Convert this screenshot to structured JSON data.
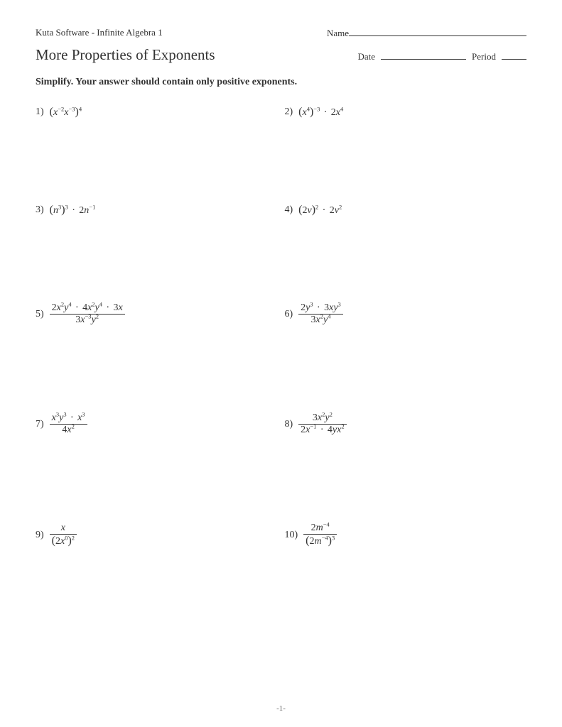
{
  "header": {
    "software": "Kuta Software - Infinite Algebra 1",
    "name_label": "Name"
  },
  "title": "More Properties of Exponents",
  "date_label": "Date",
  "period_label": "Period",
  "instructions": "Simplify.  Your answer should contain only positive exponents.",
  "problems": {
    "p1": {
      "num": "1)"
    },
    "p2": {
      "num": "2)"
    },
    "p3": {
      "num": "3)"
    },
    "p4": {
      "num": "4)"
    },
    "p5": {
      "num": "5)"
    },
    "p6": {
      "num": "6)"
    },
    "p7": {
      "num": "7)"
    },
    "p8": {
      "num": "8)"
    },
    "p9": {
      "num": "9)"
    },
    "p10": {
      "num": "10)"
    }
  },
  "math": {
    "p1": {
      "base1": "x",
      "exp1": "−2",
      "base2": "x",
      "exp2": "−3",
      "outer_exp": "4"
    },
    "p2": {
      "base1": "x",
      "exp1": "4",
      "outer_exp": "−3",
      "coef2": "2",
      "base2": "x",
      "exp2": "4"
    },
    "p3": {
      "base1": "n",
      "exp1": "3",
      "outer_exp": "3",
      "coef2": "2",
      "base2": "n",
      "exp2": "−1"
    },
    "p4": {
      "coef1": "2",
      "base1": "v",
      "outer_exp1": "2",
      "coef2": "2",
      "base2": "v",
      "exp2": "2"
    },
    "p5": {
      "top": {
        "c1": "2",
        "v1": "x",
        "e1": "2",
        "v2": "y",
        "e2": "4",
        "c2": "4",
        "v3": "x",
        "e3": "2",
        "v4": "y",
        "e4": "4",
        "c3": "3",
        "v5": "x"
      },
      "bot": {
        "c1": "3",
        "v1": "x",
        "e1": "−3",
        "v2": "y",
        "e2": "2"
      }
    },
    "p6": {
      "top": {
        "c1": "2",
        "v1": "y",
        "e1": "3",
        "c2": "3",
        "v2": "x",
        "v3": "y",
        "e3": "3"
      },
      "bot": {
        "c1": "3",
        "v1": "x",
        "e1": "2",
        "v2": "y",
        "e2": "4"
      }
    },
    "p7": {
      "top": {
        "v1": "x",
        "e1": "3",
        "v2": "y",
        "e2": "3",
        "v3": "x",
        "e3": "3"
      },
      "bot": {
        "c1": "4",
        "v1": "x",
        "e1": "2"
      }
    },
    "p8": {
      "top": {
        "c1": "3",
        "v1": "x",
        "e1": "2",
        "v2": "y",
        "e2": "2"
      },
      "bot": {
        "c1": "2",
        "v1": "x",
        "e1": "−1",
        "c2": "4",
        "v2": "y",
        "v3": "x",
        "e3": "2"
      }
    },
    "p9": {
      "top": {
        "v1": "x"
      },
      "bot": {
        "c1": "2",
        "v1": "x",
        "e1": "0",
        "outer_exp": "2"
      }
    },
    "p10": {
      "top": {
        "c1": "2",
        "v1": "m",
        "e1": "−4"
      },
      "bot": {
        "c1": "2",
        "v1": "m",
        "e1": "−4",
        "outer_exp": "3"
      }
    }
  },
  "footer": "-1-",
  "colors": {
    "text": "#333333",
    "page_bg": "#ffffff"
  }
}
